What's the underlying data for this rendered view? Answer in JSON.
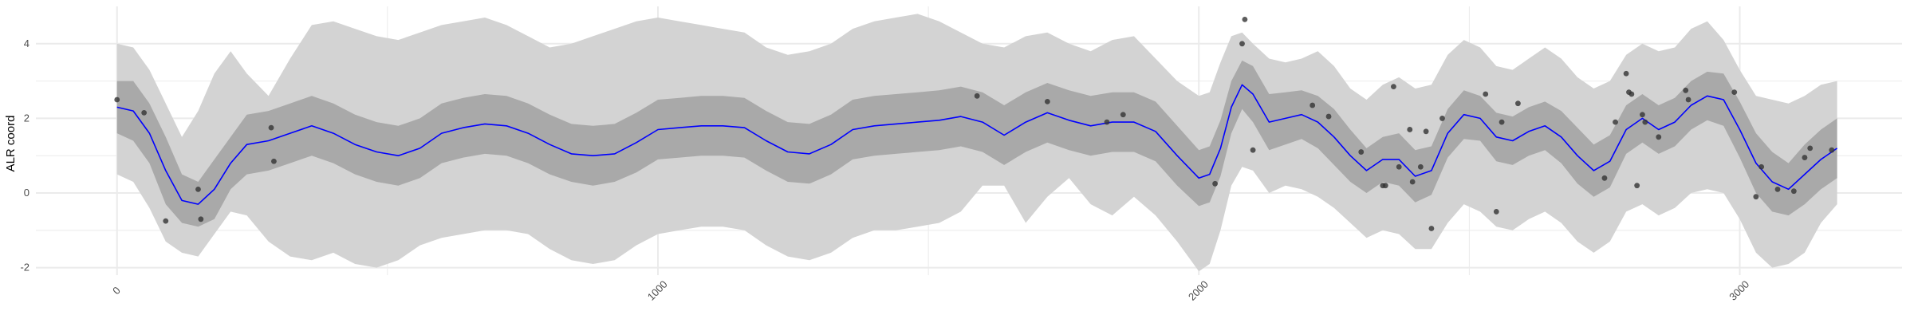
{
  "chart_data": {
    "type": "line",
    "xlabel": "",
    "ylabel": "ALR coord",
    "x_ticks": [
      0,
      1000,
      2000,
      3000
    ],
    "y_ticks": [
      -2,
      0,
      2,
      4
    ],
    "xlim": [
      -150,
      3300
    ],
    "ylim": [
      -2.2,
      5.0
    ],
    "grid": true,
    "colors": {
      "mean_line": "#0000ff",
      "inner_band": "#a9a9a9",
      "outer_band": "#d3d3d3",
      "points": "#333333",
      "grid": "#ebebeb"
    },
    "mean_curve": {
      "x": [
        0,
        30,
        60,
        90,
        120,
        150,
        180,
        210,
        240,
        280,
        320,
        360,
        400,
        440,
        480,
        520,
        560,
        600,
        640,
        680,
        720,
        760,
        800,
        840,
        880,
        920,
        960,
        1000,
        1040,
        1080,
        1120,
        1160,
        1200,
        1240,
        1280,
        1320,
        1360,
        1400,
        1440,
        1480,
        1520,
        1560,
        1600,
        1640,
        1680,
        1720,
        1760,
        1800,
        1840,
        1880,
        1920,
        1960,
        2000,
        2020,
        2040,
        2060,
        2080,
        2100,
        2130,
        2160,
        2190,
        2220,
        2250,
        2280,
        2310,
        2340,
        2370,
        2400,
        2430,
        2460,
        2490,
        2520,
        2550,
        2580,
        2610,
        2640,
        2670,
        2700,
        2730,
        2760,
        2790,
        2820,
        2850,
        2880,
        2910,
        2940,
        2970,
        3000,
        3030,
        3060,
        3090,
        3120,
        3150,
        3180
      ],
      "y": [
        2.3,
        2.2,
        1.6,
        0.6,
        -0.2,
        -0.3,
        0.1,
        0.8,
        1.3,
        1.4,
        1.6,
        1.8,
        1.6,
        1.3,
        1.1,
        1.0,
        1.2,
        1.6,
        1.75,
        1.85,
        1.8,
        1.6,
        1.3,
        1.05,
        1.0,
        1.05,
        1.35,
        1.7,
        1.75,
        1.8,
        1.8,
        1.75,
        1.4,
        1.1,
        1.05,
        1.3,
        1.7,
        1.8,
        1.85,
        1.9,
        1.95,
        2.05,
        1.9,
        1.55,
        1.9,
        2.15,
        1.95,
        1.8,
        1.9,
        1.9,
        1.65,
        1.0,
        0.4,
        0.5,
        1.2,
        2.3,
        2.9,
        2.65,
        1.9,
        2.0,
        2.1,
        1.9,
        1.5,
        1.0,
        0.6,
        0.9,
        0.9,
        0.45,
        0.6,
        1.6,
        2.1,
        2.0,
        1.5,
        1.4,
        1.65,
        1.8,
        1.5,
        1.0,
        0.6,
        0.85,
        1.7,
        2.0,
        1.7,
        1.9,
        2.35,
        2.6,
        2.5,
        1.7,
        0.8,
        0.3,
        0.1,
        0.5,
        0.9,
        1.2
      ]
    },
    "inner_band": {
      "lower": [
        1.6,
        1.4,
        0.8,
        -0.3,
        -0.8,
        -0.9,
        -0.7,
        0.1,
        0.5,
        0.6,
        0.8,
        1.0,
        0.8,
        0.5,
        0.3,
        0.2,
        0.4,
        0.8,
        0.95,
        1.05,
        1.0,
        0.8,
        0.5,
        0.3,
        0.2,
        0.3,
        0.55,
        0.9,
        0.95,
        1.0,
        1.0,
        0.95,
        0.6,
        0.3,
        0.25,
        0.5,
        0.9,
        1.0,
        1.05,
        1.1,
        1.15,
        1.25,
        1.1,
        0.75,
        1.1,
        1.35,
        1.15,
        1.0,
        1.1,
        1.1,
        0.85,
        0.2,
        -0.35,
        -0.25,
        0.45,
        1.6,
        2.25,
        1.9,
        1.15,
        1.3,
        1.45,
        1.2,
        0.75,
        0.3,
        0.0,
        0.3,
        0.2,
        -0.25,
        -0.05,
        0.95,
        1.45,
        1.4,
        0.85,
        0.75,
        1.0,
        1.15,
        0.8,
        0.25,
        -0.1,
        0.15,
        1.05,
        1.35,
        1.05,
        1.25,
        1.7,
        1.95,
        1.8,
        0.95,
        0.0,
        -0.5,
        -0.6,
        -0.3,
        0.1,
        0.4
      ],
      "upper": [
        3.0,
        3.0,
        2.4,
        1.5,
        0.5,
        0.3,
        0.9,
        1.5,
        2.1,
        2.2,
        2.4,
        2.6,
        2.4,
        2.1,
        1.9,
        1.8,
        2.0,
        2.4,
        2.55,
        2.65,
        2.6,
        2.4,
        2.1,
        1.85,
        1.8,
        1.85,
        2.15,
        2.5,
        2.55,
        2.6,
        2.6,
        2.55,
        2.2,
        1.9,
        1.85,
        2.1,
        2.5,
        2.6,
        2.65,
        2.7,
        2.75,
        2.85,
        2.7,
        2.35,
        2.7,
        2.95,
        2.75,
        2.6,
        2.7,
        2.7,
        2.45,
        1.8,
        1.15,
        1.25,
        1.95,
        3.0,
        3.55,
        3.4,
        2.65,
        2.7,
        2.75,
        2.6,
        2.25,
        1.7,
        1.2,
        1.5,
        1.6,
        1.15,
        1.25,
        2.25,
        2.75,
        2.6,
        2.15,
        2.05,
        2.3,
        2.45,
        2.2,
        1.75,
        1.3,
        1.55,
        2.35,
        2.65,
        2.35,
        2.55,
        3.0,
        3.25,
        3.2,
        2.45,
        1.6,
        1.1,
        0.8,
        1.3,
        1.7,
        2.0
      ]
    },
    "outer_band": {
      "lower": [
        0.5,
        0.3,
        -0.4,
        -1.3,
        -1.6,
        -1.7,
        -1.1,
        -0.5,
        -0.6,
        -1.3,
        -1.7,
        -1.8,
        -1.6,
        -1.9,
        -2.0,
        -1.8,
        -1.4,
        -1.2,
        -1.1,
        -1.0,
        -1.0,
        -1.1,
        -1.5,
        -1.8,
        -1.9,
        -1.8,
        -1.4,
        -1.1,
        -1.0,
        -0.9,
        -0.9,
        -1.0,
        -1.4,
        -1.7,
        -1.8,
        -1.6,
        -1.2,
        -1.0,
        -1.0,
        -0.9,
        -0.8,
        -0.5,
        0.2,
        0.2,
        -0.8,
        -0.1,
        0.4,
        -0.3,
        -0.6,
        -0.1,
        -0.6,
        -1.3,
        -2.1,
        -1.9,
        -1.0,
        0.2,
        0.7,
        0.6,
        0.0,
        0.2,
        0.1,
        -0.1,
        -0.4,
        -0.8,
        -1.2,
        -1.0,
        -1.1,
        -1.5,
        -1.5,
        -0.8,
        -0.3,
        -0.5,
        -0.9,
        -1.0,
        -0.7,
        -0.5,
        -0.8,
        -1.3,
        -1.6,
        -1.3,
        -0.5,
        -0.3,
        -0.6,
        -0.4,
        0.0,
        0.1,
        0.0,
        -0.7,
        -1.6,
        -2.0,
        -1.9,
        -1.6,
        -0.8,
        -0.3
      ],
      "upper": [
        4.0,
        3.9,
        3.3,
        2.4,
        1.5,
        2.2,
        3.2,
        3.8,
        3.2,
        2.6,
        3.6,
        4.5,
        4.6,
        4.4,
        4.2,
        4.1,
        4.3,
        4.5,
        4.6,
        4.7,
        4.5,
        4.2,
        3.9,
        4.0,
        4.2,
        4.4,
        4.6,
        4.7,
        4.6,
        4.5,
        4.4,
        4.3,
        3.9,
        3.7,
        3.8,
        4.0,
        4.4,
        4.6,
        4.7,
        4.8,
        4.6,
        4.3,
        4.0,
        3.9,
        4.2,
        4.3,
        4.0,
        3.8,
        4.1,
        4.2,
        3.6,
        3.0,
        2.6,
        2.7,
        3.5,
        4.2,
        4.3,
        4.0,
        3.6,
        3.5,
        3.6,
        3.8,
        3.4,
        2.8,
        2.5,
        2.9,
        3.1,
        2.8,
        2.9,
        3.7,
        4.1,
        3.9,
        3.4,
        3.3,
        3.6,
        3.9,
        3.6,
        3.1,
        2.8,
        3.0,
        3.7,
        4.0,
        3.8,
        3.9,
        4.4,
        4.6,
        4.1,
        3.3,
        2.6,
        2.5,
        2.4,
        2.6,
        2.9,
        3.0
      ]
    },
    "points": [
      {
        "x": 0,
        "y": 2.5
      },
      {
        "x": 50,
        "y": 2.15
      },
      {
        "x": 90,
        "y": -0.75
      },
      {
        "x": 150,
        "y": 0.1
      },
      {
        "x": 155,
        "y": -0.7
      },
      {
        "x": 285,
        "y": 1.75
      },
      {
        "x": 290,
        "y": 0.85
      },
      {
        "x": 1590,
        "y": 2.6
      },
      {
        "x": 1720,
        "y": 2.45
      },
      {
        "x": 1830,
        "y": 1.9
      },
      {
        "x": 1860,
        "y": 2.1
      },
      {
        "x": 2030,
        "y": 0.25
      },
      {
        "x": 2080,
        "y": 4.0
      },
      {
        "x": 2085,
        "y": 4.65
      },
      {
        "x": 2100,
        "y": 1.15
      },
      {
        "x": 2210,
        "y": 2.35
      },
      {
        "x": 2240,
        "y": 2.05
      },
      {
        "x": 2300,
        "y": 1.1
      },
      {
        "x": 2340,
        "y": 0.2
      },
      {
        "x": 2345,
        "y": 0.2
      },
      {
        "x": 2360,
        "y": 2.85
      },
      {
        "x": 2370,
        "y": 0.7
      },
      {
        "x": 2390,
        "y": 1.7
      },
      {
        "x": 2395,
        "y": 0.3
      },
      {
        "x": 2410,
        "y": 0.7
      },
      {
        "x": 2420,
        "y": 1.65
      },
      {
        "x": 2430,
        "y": -0.95
      },
      {
        "x": 2450,
        "y": 2.0
      },
      {
        "x": 2530,
        "y": 2.65
      },
      {
        "x": 2550,
        "y": -0.5
      },
      {
        "x": 2560,
        "y": 1.9
      },
      {
        "x": 2590,
        "y": 2.4
      },
      {
        "x": 2750,
        "y": 0.4
      },
      {
        "x": 2770,
        "y": 1.9
      },
      {
        "x": 2790,
        "y": 3.2
      },
      {
        "x": 2795,
        "y": 2.7
      },
      {
        "x": 2800,
        "y": 2.65
      },
      {
        "x": 2810,
        "y": 0.2
      },
      {
        "x": 2820,
        "y": 2.1
      },
      {
        "x": 2825,
        "y": 1.9
      },
      {
        "x": 2850,
        "y": 1.5
      },
      {
        "x": 2900,
        "y": 2.75
      },
      {
        "x": 2905,
        "y": 2.5
      },
      {
        "x": 2990,
        "y": 2.7
      },
      {
        "x": 3030,
        "y": -0.1
      },
      {
        "x": 3040,
        "y": 0.7
      },
      {
        "x": 3070,
        "y": 0.1
      },
      {
        "x": 3100,
        "y": 0.05
      },
      {
        "x": 3120,
        "y": 0.95
      },
      {
        "x": 3130,
        "y": 1.2
      },
      {
        "x": 3170,
        "y": 1.15
      }
    ]
  }
}
